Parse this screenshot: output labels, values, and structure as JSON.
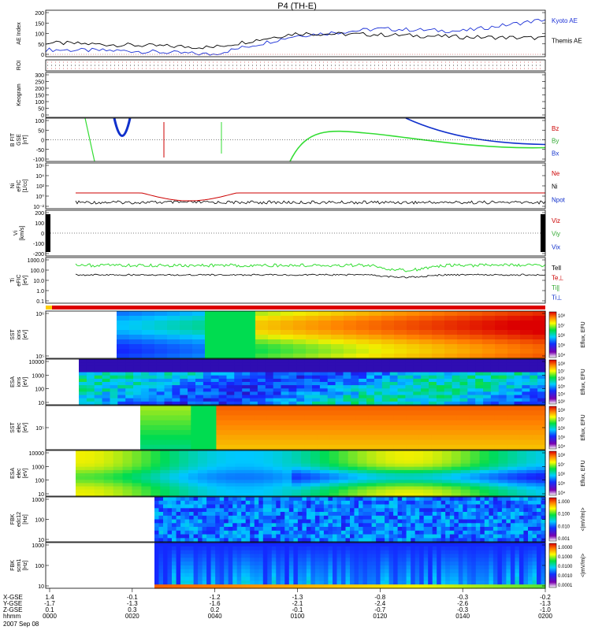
{
  "title": "P4 (TH-E)",
  "date": "2007 Sep 08",
  "colors": {
    "black": "#000000",
    "red": "#cc0000",
    "green": "#33dd33",
    "blue": "#1030cc",
    "kyoto": "#1a2fd6"
  },
  "rows_label": [
    "X-GSE",
    "Y-GSE",
    "Z-GSE",
    "hhmm"
  ],
  "time_axis": {
    "hhmm": [
      "0000",
      "0020",
      "0040",
      "0100",
      "0120",
      "0140",
      "0200"
    ],
    "x_gse": [
      "1.4",
      "-0.1",
      "-1.2",
      "-1.3",
      "-0.8",
      "-0.3",
      "-0.2"
    ],
    "y_gse": [
      "-1.7",
      "-1.3",
      "-1.6",
      "-2.1",
      "-2.4",
      "-2.6",
      "-1.3"
    ],
    "z_gse": [
      "0.1",
      "0.3",
      "0.2",
      "-0.1",
      "-0.7",
      "-0.3",
      "-1.0"
    ]
  },
  "panels": [
    {
      "id": "ae",
      "ylabel": [
        "AE Index"
      ],
      "ticks": [
        "200",
        "150",
        "100",
        "50",
        "0"
      ],
      "right": [
        {
          "text": "Kyoto AE",
          "color": "#1a2fd6"
        },
        {
          "text": "Themis AE",
          "color": "#000000"
        }
      ]
    },
    {
      "id": "roi",
      "ylabel": [
        "ROI"
      ],
      "ticks": [],
      "right": []
    },
    {
      "id": "keogram",
      "ylabel": [
        "Keogram"
      ],
      "ticks": [
        "300",
        "250",
        "200",
        "150",
        "100",
        "50",
        "0"
      ],
      "right": []
    },
    {
      "id": "bfield",
      "ylabel": [
        "B FIT",
        "GSE",
        "[nT]"
      ],
      "ticks": [
        "100",
        "50",
        "0",
        "-50",
        "-100"
      ],
      "right": [
        {
          "text": "Bz",
          "color": "#cc0000"
        },
        {
          "text": "By",
          "color": "#33aa33"
        },
        {
          "text": "Bx",
          "color": "#1030cc"
        }
      ]
    },
    {
      "id": "density",
      "ylabel": [
        "Ni",
        "eFIC",
        "[1/cc]"
      ],
      "ticks": [
        "10⁶",
        "10⁴",
        "10²",
        "10⁰",
        "10⁻²"
      ],
      "right": [
        {
          "text": "Ne",
          "color": "#cc0000"
        },
        {
          "text": "Ni",
          "color": "#000000"
        },
        {
          "text": "Npot",
          "color": "#1030cc"
        }
      ]
    },
    {
      "id": "velocity",
      "ylabel": [
        "Vi",
        "[km/s]"
      ],
      "ticks": [
        "200",
        "100",
        "0",
        "-100",
        "-200"
      ],
      "right": [
        {
          "text": "Viz",
          "color": "#cc0000"
        },
        {
          "text": "Viy",
          "color": "#33aa33"
        },
        {
          "text": "Vix",
          "color": "#1030cc"
        }
      ]
    },
    {
      "id": "temp",
      "ylabel": [
        "Ti",
        "eFIC",
        "[eV]"
      ],
      "ticks": [
        "1000.0",
        "100.0",
        "10.0",
        "1.0",
        "0.1"
      ],
      "right": [
        {
          "text": "Tell",
          "color": "#000000"
        },
        {
          "text": "Te⊥",
          "color": "#cc0000"
        },
        {
          "text": "Ti∥",
          "color": "#33aa33"
        },
        {
          "text": "Ti⊥",
          "color": "#1030cc"
        }
      ]
    },
    {
      "id": "sst_i",
      "ylabel": [
        "SST",
        "ions",
        "[eV]"
      ],
      "ticks": [
        "10⁶",
        "10⁵"
      ],
      "cb_label": "Eflux, EFU",
      "cb_ticks": [
        "10⁸",
        "10⁷",
        "10⁶",
        "10⁵",
        "10⁴"
      ]
    },
    {
      "id": "esa_i",
      "ylabel": [
        "ESA",
        "ions",
        "[eV]"
      ],
      "ticks": [
        "10000",
        "1000",
        "100",
        "10"
      ],
      "cb_label": "Eflux, EFU",
      "cb_ticks": [
        "10⁸",
        "10⁷",
        "10⁶",
        "10⁵",
        "10⁴",
        "10³"
      ]
    },
    {
      "id": "sst_e",
      "ylabel": [
        "SST",
        "elec",
        "[eV]"
      ],
      "ticks": [
        "10⁵"
      ],
      "cb_label": "Eflux, EFU",
      "cb_ticks": [
        "10⁸",
        "10⁷",
        "10⁶",
        "10⁵",
        "10⁴"
      ]
    },
    {
      "id": "esa_e",
      "ylabel": [
        "ESA",
        "elec",
        "[eV]"
      ],
      "ticks": [
        "10000",
        "1000",
        "100",
        "10"
      ],
      "cb_label": "Eflux, EFU",
      "cb_ticks": [
        "10⁸",
        "10⁷",
        "10⁶",
        "10⁵",
        "10⁴"
      ]
    },
    {
      "id": "fbk1",
      "ylabel": [
        "FBK",
        "edc12",
        "[Hz]"
      ],
      "ticks": [
        "1000",
        "100",
        "10"
      ],
      "cb_label": "<|mV/m|>",
      "cb_ticks": [
        "1.000",
        "0.100",
        "0.010",
        "0.001"
      ]
    },
    {
      "id": "fbk2",
      "ylabel": [
        "FBK",
        "scm1",
        "[Hz]"
      ],
      "ticks": [
        "1000",
        "100",
        "10"
      ],
      "cb_label": "<|mV/m|>",
      "cb_ticks": [
        "1.0000",
        "0.1000",
        "0.0100",
        "0.0010",
        "0.0001"
      ]
    }
  ],
  "chart_data": [
    {
      "type": "line",
      "panel": "AE Index",
      "x_hhmm": [
        "0000",
        "0020",
        "0040",
        "0100",
        "0120",
        "0140",
        "0200"
      ],
      "series": [
        {
          "name": "Kyoto AE",
          "values": [
            30,
            25,
            10,
            90,
            120,
            110,
            160
          ]
        },
        {
          "name": "Themis AE",
          "values": [
            60,
            50,
            40,
            100,
            95,
            85,
            80
          ]
        }
      ],
      "ylim": [
        0,
        200
      ]
    },
    {
      "type": "line",
      "panel": "B FIT GSE [nT]",
      "series": [
        {
          "name": "By",
          "values": [
            null,
            null,
            null,
            -100,
            40,
            -20,
            -40
          ]
        },
        {
          "name": "Bx",
          "values": [
            null,
            null,
            null,
            null,
            null,
            100,
            20
          ]
        }
      ],
      "ylim": [
        -100,
        100
      ]
    },
    {
      "type": "heatmap",
      "panel": "SST ions",
      "ylabel": "[eV]"
    },
    {
      "type": "heatmap",
      "panel": "ESA ions",
      "ylim": [
        10,
        10000
      ]
    },
    {
      "type": "heatmap",
      "panel": "SST elec"
    },
    {
      "type": "heatmap",
      "panel": "ESA elec",
      "ylim": [
        10,
        10000
      ]
    },
    {
      "type": "heatmap",
      "panel": "FBK edc12",
      "ylim": [
        10,
        1000
      ]
    },
    {
      "type": "heatmap",
      "panel": "FBK scm1",
      "ylim": [
        10,
        1000
      ]
    }
  ]
}
